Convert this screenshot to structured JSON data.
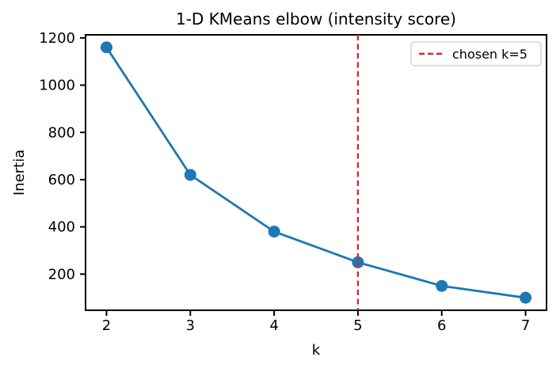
{
  "chart_data": {
    "type": "line",
    "title": "1-D KMeans elbow (intensity score)",
    "xlabel": "k",
    "ylabel": "Inertia",
    "x": [
      2,
      3,
      4,
      5,
      6,
      7
    ],
    "y": [
      1160,
      620,
      380,
      250,
      150,
      100
    ],
    "xlim": [
      1.75,
      7.25
    ],
    "ylim": [
      47,
      1213
    ],
    "xticks": [
      "2",
      "3",
      "4",
      "5",
      "6",
      "7"
    ],
    "xtick_values": [
      2,
      3,
      4,
      5,
      6,
      7
    ],
    "yticks": [
      "200",
      "400",
      "600",
      "800",
      "1000",
      "1200"
    ],
    "ytick_values": [
      200,
      400,
      600,
      800,
      1000,
      1200
    ],
    "grid": false,
    "line_color": "#1f77b4",
    "marker": "circle",
    "vline": {
      "x": 5,
      "color": "#d62728",
      "style": "dashed"
    },
    "legend": {
      "position": "upper right",
      "entries": [
        {
          "label": "chosen k=5",
          "color": "#d62728",
          "style": "dashed"
        }
      ]
    },
    "axis_color": "#000000",
    "background": "#ffffff"
  }
}
